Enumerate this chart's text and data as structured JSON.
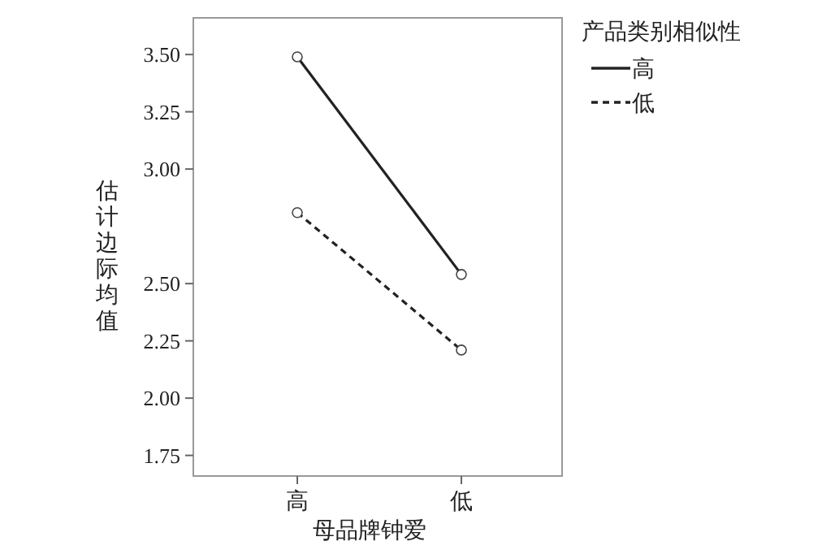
{
  "chart_data": {
    "type": "line",
    "xlabel": "母品牌钟爱",
    "ylabel": "估计边际均值",
    "legend_title": "产品类别相似性",
    "categories": [
      "高",
      "低"
    ],
    "series": [
      {
        "name": "高",
        "color": "#222222",
        "values": [
          3.49,
          2.54
        ],
        "line_style": "solid"
      },
      {
        "name": "低",
        "color": "#222222",
        "values": [
          2.81,
          2.21
        ],
        "line_style": "dashed"
      }
    ],
    "ylim": [
      1.66,
      3.66
    ],
    "yticks": [
      {
        "value": 3.5,
        "label": "3.50"
      },
      3.25,
      {
        "value": 3.0,
        "label": "3.00"
      },
      {
        "value": 2.5,
        "label": "2.50"
      },
      2.25,
      {
        "value": 2.0,
        "label": "2.00"
      },
      1.75
    ],
    "marker": "circle",
    "legend": "top right",
    "grid": false
  }
}
